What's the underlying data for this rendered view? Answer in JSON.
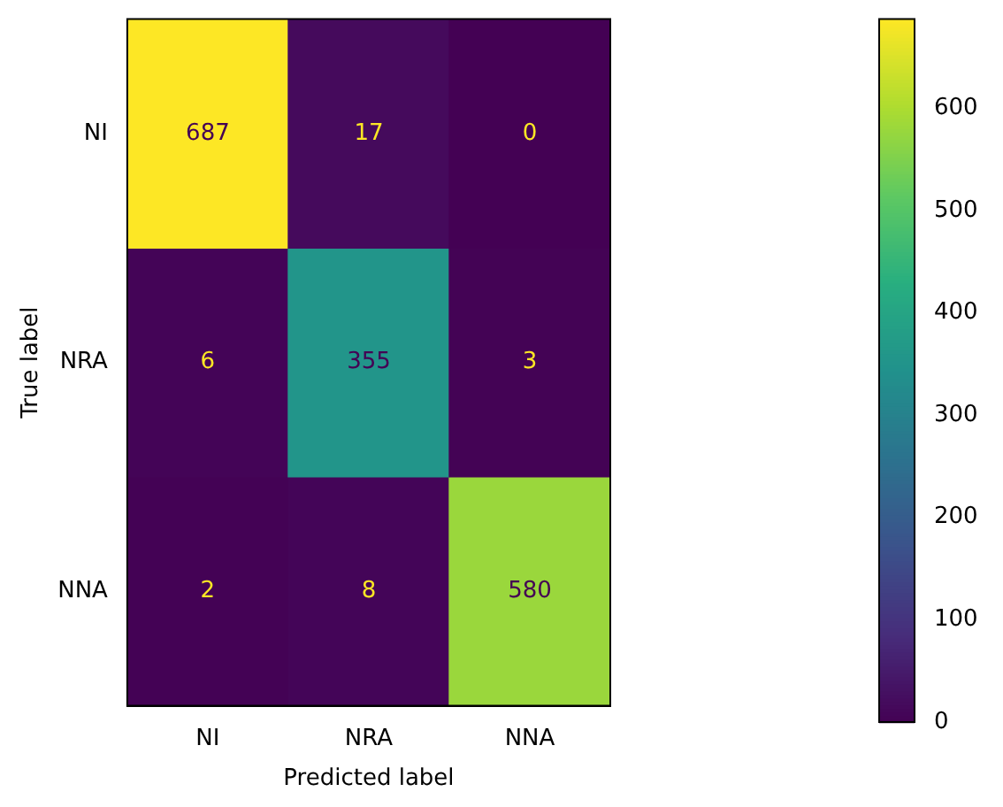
{
  "chart_data": {
    "type": "heatmap",
    "xlabel": "Predicted label",
    "ylabel": "True label",
    "categories": [
      "NI",
      "NRA",
      "NNA"
    ],
    "y_categories": [
      "NI",
      "NRA",
      "NNA"
    ],
    "cells": [
      [
        687,
        17,
        0
      ],
      [
        6,
        355,
        3
      ],
      [
        2,
        8,
        580
      ]
    ],
    "clim": [
      0,
      687
    ],
    "cticks": [
      0,
      100,
      200,
      300,
      400,
      500,
      600
    ],
    "data_labels": true
  }
}
